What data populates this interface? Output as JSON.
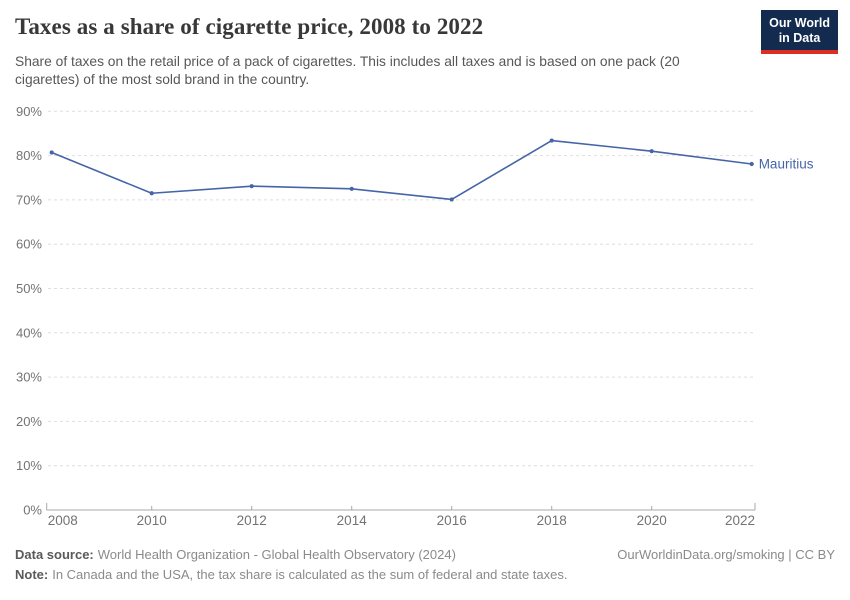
{
  "header": {
    "title": "Taxes as a share of cigarette price, 2008 to 2022",
    "subtitle": "Share of taxes on the retail price of a pack of cigarettes. This includes all taxes and is based on one pack (20 cigarettes) of the most sold brand in the country.",
    "logo": {
      "line1": "Our World",
      "line2": "in Data"
    }
  },
  "chart_data": {
    "type": "line",
    "title": "Taxes as a share of cigarette price, 2008 to 2022",
    "x": [
      2008,
      2010,
      2012,
      2014,
      2016,
      2018,
      2020,
      2022
    ],
    "series": [
      {
        "name": "Mauritius",
        "values": [
          80.7,
          71.5,
          73.1,
          72.5,
          70.1,
          83.4,
          81.0,
          78.1
        ],
        "color": "#4565A8"
      }
    ],
    "xlabel": "",
    "ylabel": "",
    "ylim": [
      0,
      90
    ],
    "yticks": [
      0,
      10,
      20,
      30,
      40,
      50,
      60,
      70,
      80,
      90
    ],
    "ytick_suffix": "%",
    "grid": "horizontal-dashed",
    "legend": "end-of-line-label"
  },
  "footer": {
    "datasource_label": "Data source:",
    "datasource": "World Health Organization - Global Health Observatory (2024)",
    "note_label": "Note:",
    "note": "In Canada and the USA, the tax share is calculated as the sum of federal and state taxes.",
    "link": "OurWorldinData.org/smoking | CC BY"
  },
  "colors": {
    "line": "#4565A8",
    "grid": "#dedede",
    "axis": "#a8a8a8",
    "tick_label": "#737373",
    "logo_bg": "#122B4E",
    "logo_red": "#DC2E22"
  }
}
